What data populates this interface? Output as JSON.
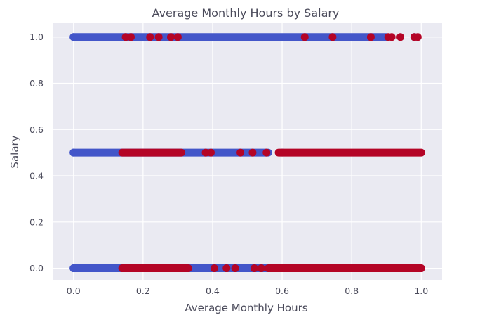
{
  "chart_data": {
    "type": "scatter",
    "title": "Average Monthly Hours by Salary",
    "xlabel": "Average Monthly Hours",
    "ylabel": "Salary",
    "xlim": [
      -0.06,
      1.06
    ],
    "ylim": [
      -0.05,
      1.06
    ],
    "xticks": [
      0.0,
      0.2,
      0.4,
      0.6,
      0.8,
      1.0
    ],
    "xtick_labels": [
      "0.0",
      "0.2",
      "0.4",
      "0.6",
      "0.8",
      "1.0"
    ],
    "yticks": [
      0.0,
      0.2,
      0.4,
      0.6,
      0.8,
      1.0
    ],
    "ytick_labels": [
      "0.0",
      "0.2",
      "0.4",
      "0.6",
      "0.8",
      "1.0"
    ],
    "grid": true,
    "legend": "none",
    "background": "#eaeaf2",
    "series": [
      {
        "color": "#4356c9",
        "segments": [
          {
            "y": 1.0,
            "x_start": 0.0,
            "x_end": 0.9
          },
          {
            "y": 0.5,
            "x_start": 0.0,
            "x_end": 0.56
          },
          {
            "y": 0.0,
            "x_start": 0.0,
            "x_end": 0.56
          }
        ],
        "points": [
          {
            "x": 0.0,
            "y": 1.0
          },
          {
            "x": 0.98,
            "y": 1.0
          },
          {
            "x": 0.0,
            "y": 0.5
          },
          {
            "x": 0.6,
            "y": 0.5
          },
          {
            "x": 0.0,
            "y": 0.0
          },
          {
            "x": 0.6,
            "y": 0.0
          }
        ]
      },
      {
        "color": "#b40426",
        "segments": [
          {
            "y": 0.5,
            "x_start": 0.14,
            "x_end": 0.31
          },
          {
            "y": 0.5,
            "x_start": 0.59,
            "x_end": 1.0
          },
          {
            "y": 0.0,
            "x_start": 0.14,
            "x_end": 0.33
          },
          {
            "y": 0.0,
            "x_start": 0.56,
            "x_end": 1.0
          }
        ],
        "points": [
          {
            "x": 0.15,
            "y": 1.0
          },
          {
            "x": 0.165,
            "y": 1.0
          },
          {
            "x": 0.22,
            "y": 1.0
          },
          {
            "x": 0.245,
            "y": 1.0
          },
          {
            "x": 0.28,
            "y": 1.0
          },
          {
            "x": 0.3,
            "y": 1.0
          },
          {
            "x": 0.665,
            "y": 1.0
          },
          {
            "x": 0.745,
            "y": 1.0
          },
          {
            "x": 0.855,
            "y": 1.0
          },
          {
            "x": 0.905,
            "y": 1.0
          },
          {
            "x": 0.915,
            "y": 1.0
          },
          {
            "x": 0.94,
            "y": 1.0
          },
          {
            "x": 0.98,
            "y": 1.0
          },
          {
            "x": 0.99,
            "y": 1.0
          },
          {
            "x": 0.38,
            "y": 0.5
          },
          {
            "x": 0.395,
            "y": 0.5
          },
          {
            "x": 0.48,
            "y": 0.5
          },
          {
            "x": 0.515,
            "y": 0.5
          },
          {
            "x": 0.555,
            "y": 0.5
          },
          {
            "x": 0.405,
            "y": 0.0
          },
          {
            "x": 0.44,
            "y": 0.0
          },
          {
            "x": 0.465,
            "y": 0.0
          },
          {
            "x": 0.52,
            "y": 0.0
          },
          {
            "x": 0.54,
            "y": 0.0
          }
        ]
      }
    ]
  }
}
